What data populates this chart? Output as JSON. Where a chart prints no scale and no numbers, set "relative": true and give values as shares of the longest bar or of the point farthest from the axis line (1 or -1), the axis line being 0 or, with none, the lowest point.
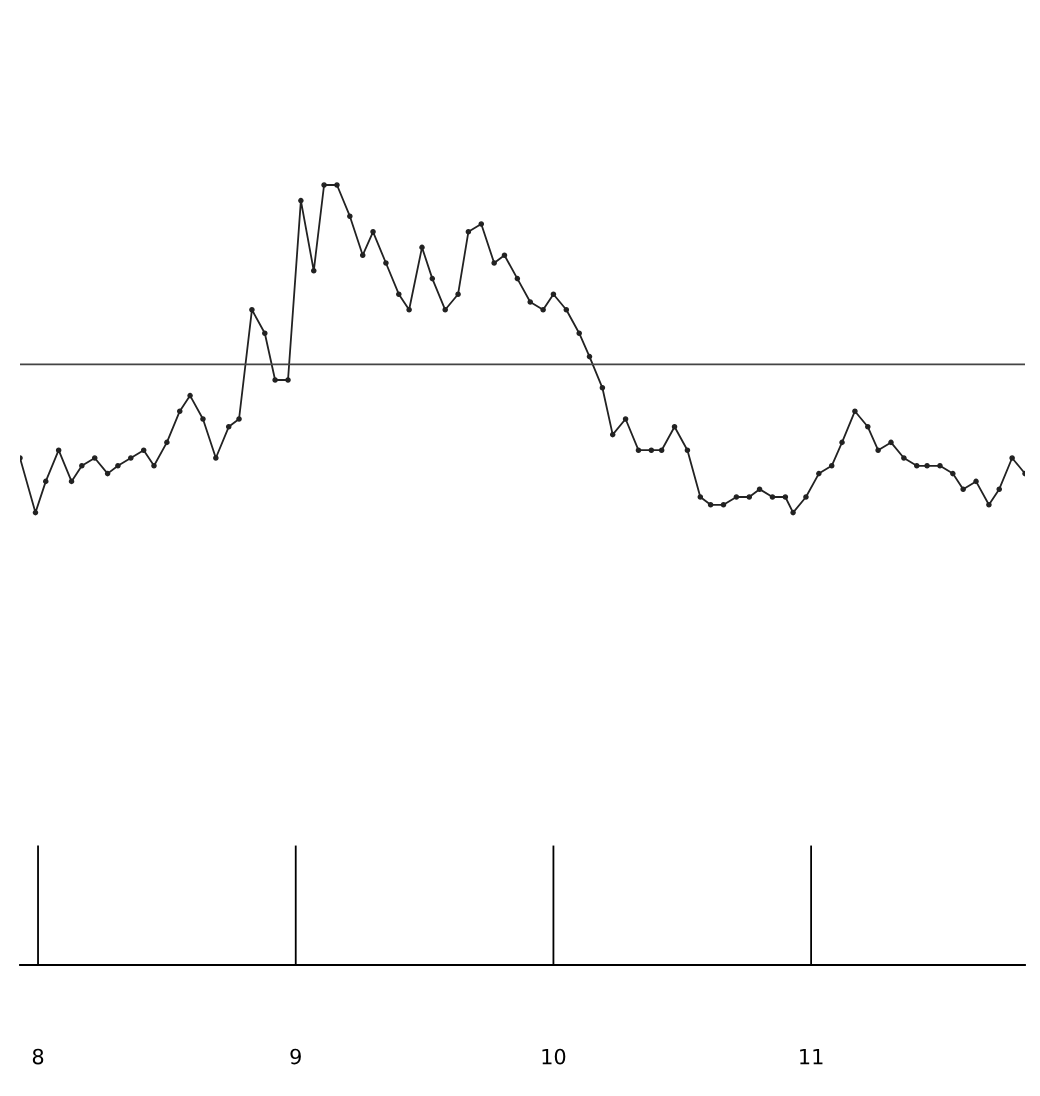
{
  "chart_data": {
    "type": "line",
    "relative": true,
    "x": [
      7.93,
      7.99,
      8.03,
      8.08,
      8.13,
      8.17,
      8.22,
      8.27,
      8.31,
      8.36,
      8.41,
      8.45,
      8.5,
      8.55,
      8.59,
      8.64,
      8.69,
      8.74,
      8.78,
      8.83,
      8.88,
      8.92,
      8.97,
      9.02,
      9.07,
      9.11,
      9.16,
      9.21,
      9.26,
      9.3,
      9.35,
      9.4,
      9.44,
      9.49,
      9.53,
      9.58,
      9.63,
      9.67,
      9.72,
      9.77,
      9.81,
      9.86,
      9.91,
      9.96,
      10.0,
      10.05,
      10.1,
      10.14,
      10.19,
      10.23,
      10.28,
      10.33,
      10.38,
      10.42,
      10.47,
      10.52,
      10.57,
      10.61,
      10.66,
      10.71,
      10.76,
      10.8,
      10.85,
      10.9,
      10.93,
      10.98,
      11.03,
      11.08,
      11.12,
      11.17,
      11.22,
      11.26,
      11.31,
      11.36,
      11.41,
      11.45,
      11.5,
      11.55,
      11.59,
      11.64,
      11.69,
      11.73,
      11.78,
      11.83
    ],
    "series": [
      {
        "color": "#222222",
        "values": [
          0.65,
          0.58,
          0.62,
          0.66,
          0.62,
          0.64,
          0.65,
          0.63,
          0.64,
          0.65,
          0.66,
          0.64,
          0.67,
          0.71,
          0.73,
          0.7,
          0.65,
          0.69,
          0.7,
          0.84,
          0.81,
          0.75,
          0.75,
          0.98,
          0.89,
          1.0,
          1.0,
          0.96,
          0.91,
          0.94,
          0.9,
          0.86,
          0.84,
          0.92,
          0.88,
          0.84,
          0.86,
          0.94,
          0.95,
          0.9,
          0.91,
          0.88,
          0.85,
          0.84,
          0.86,
          0.84,
          0.81,
          0.78,
          0.74,
          0.68,
          0.7,
          0.66,
          0.66,
          0.66,
          0.69,
          0.66,
          0.6,
          0.59,
          0.59,
          0.6,
          0.6,
          0.61,
          0.6,
          0.6,
          0.58,
          0.6,
          0.63,
          0.64,
          0.67,
          0.71,
          0.69,
          0.66,
          0.67,
          0.65,
          0.64,
          0.64,
          0.64,
          0.63,
          0.61,
          0.62,
          0.59,
          0.61,
          0.65,
          0.63
        ]
      }
    ],
    "xlim": [
      7.93,
      11.83
    ],
    "xticks": [
      8,
      9,
      10,
      11
    ],
    "marker": "circle",
    "line_style": "solid",
    "grid": false,
    "legend": false,
    "ref_lines": [
      {
        "axis": "y",
        "value": 0.77,
        "color": "#444444"
      }
    ]
  }
}
